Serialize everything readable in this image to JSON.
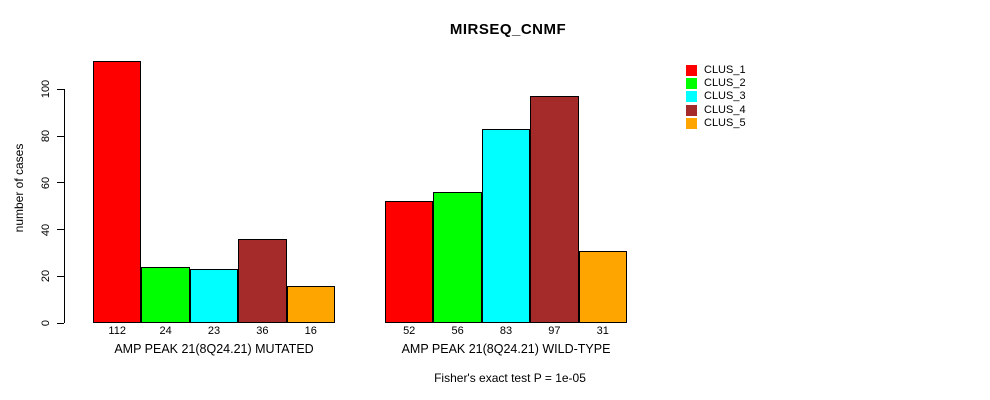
{
  "chart_data": {
    "type": "bar",
    "title": "MIRSEQ_CNMF",
    "ylabel": "number of cases",
    "xlabel": "",
    "ylim": [
      0,
      112
    ],
    "yticks": [
      0,
      20,
      40,
      60,
      80,
      100
    ],
    "grid": false,
    "legend_position": "right",
    "bar_value_labels_shown": true,
    "groups": [
      {
        "label": "AMP PEAK 21(8Q24.21) MUTATED",
        "values": [
          112,
          24,
          23,
          36,
          16
        ]
      },
      {
        "label": "AMP PEAK 21(8Q24.21) WILD-TYPE",
        "values": [
          52,
          56,
          83,
          97,
          31
        ]
      }
    ],
    "series": [
      {
        "name": "CLUS_1",
        "color": "#FF0000",
        "values": [
          112,
          52
        ]
      },
      {
        "name": "CLUS_2",
        "color": "#00FF00",
        "values": [
          24,
          56
        ]
      },
      {
        "name": "CLUS_3",
        "color": "#00FFFF",
        "values": [
          23,
          83
        ]
      },
      {
        "name": "CLUS_4",
        "color": "#A52A2A",
        "values": [
          36,
          97
        ]
      },
      {
        "name": "CLUS_5",
        "color": "#FFA500",
        "values": [
          16,
          31
        ]
      }
    ],
    "annotation": "Fisher's exact test P = 1e-05",
    "text_color": "#000000",
    "bar_border_color": "#000000"
  }
}
